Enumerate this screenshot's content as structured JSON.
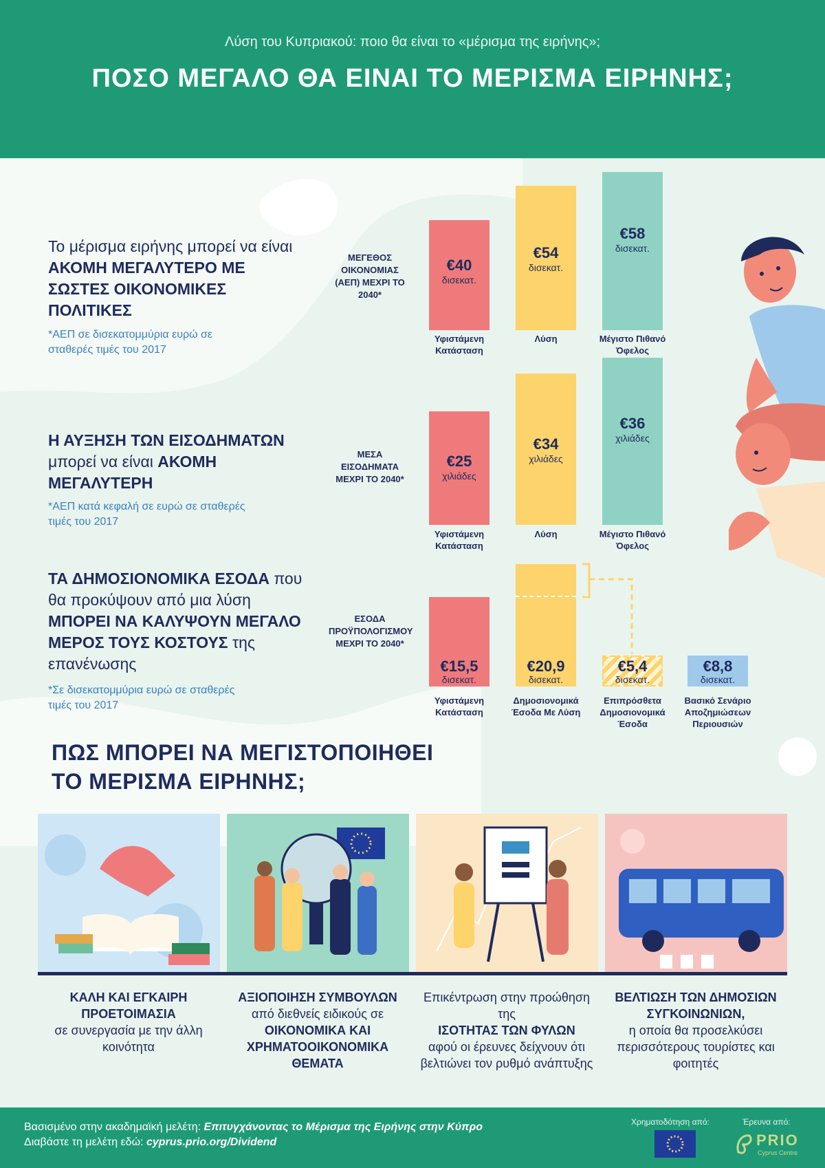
{
  "header": {
    "subtitle": "Λύση του Κυπριακού: ποιο θα είναι το «μέρισμα της ειρήνης»;",
    "title": "ΠΟΣΟ ΜΕΓΑΛΟ ΘΑ ΕΙΝΑΙ ΤΟ ΜΕΡΙΣΜΑ ΕΙΡΗΝΗΣ;"
  },
  "section1": {
    "text_pre": "Το μέρισμα ειρήνης μπορεί να είναι ",
    "text_bold": "ΑΚΟΜΗ ΜΕΓΑΛΥΤΕΡΟ ΜΕ ΣΩΣΤΕΣ ΟΙΚΟΝΟΜΙΚΕΣ ΠΟΛΙΤΙΚΕΣ",
    "note": "*ΑΕΠ σε δισεκατομμύρια ευρώ σε σταθερές τιμές του 2017",
    "row_label": "ΜΕΓΕΘΟΣ ΟΙΚΟΝΟΜΙΑΣ (ΑΕΠ) ΜΕΧΡΙ ΤΟ 2040*",
    "bars": [
      {
        "value": "€40",
        "unit": "δισεκατ.",
        "caption": "Υφιστάμενη Κατάσταση",
        "amount": 40,
        "color": "#ef7a7c"
      },
      {
        "value": "€54",
        "unit": "δισεκατ.",
        "caption": "Λύση",
        "amount": 54,
        "color": "#fdd36b"
      },
      {
        "value": "€58",
        "unit": "δισεκατ.",
        "caption": "Μέγιστο Πιθανό Όφελος",
        "amount": 58,
        "color": "#8fd2c4"
      }
    ]
  },
  "section2": {
    "text_bold1": "Η ΑΥΞΗΣΗ ΤΩΝ ΕΙΣΟΔΗΜΑΤΩΝ",
    "text_mid": " μπορεί να είναι ",
    "text_bold2": "ΑΚΟΜΗ ΜΕΓΑΛΥΤΕΡΗ",
    "note": "*ΑΕΠ κατά κεφαλή σε ευρώ σε σταθερές τιμές του 2017",
    "row_label": "ΜΕΣΑ ΕΙΣΟΔΗΜΑΤΑ ΜΕΧΡΙ ΤΟ 2040*",
    "bars": [
      {
        "value": "€25",
        "unit": "χιλιάδες",
        "caption": "Υφιστάμενη Κατάσταση",
        "amount": 25,
        "color": "#ef7a7c"
      },
      {
        "value": "€34",
        "unit": "χιλιάδες",
        "caption": "Λύση",
        "amount": 34,
        "color": "#fdd36b"
      },
      {
        "value": "€36",
        "unit": "χιλιάδες",
        "caption": "Μέγιστο Πιθανό Όφελος",
        "amount": 36,
        "color": "#8fd2c4"
      }
    ]
  },
  "section3": {
    "text_bold1": "ΤΑ ΔΗΜΟΣΙΟΝΟΜΙΚΑ ΕΣΟΔΑ",
    "text_mid": " που θα προκύψουν από μια λύση ",
    "text_bold2": "ΜΠΟΡΕΙ ΝΑ ΚΑΛΥΨΟΥΝ ΜΕΓΑΛΟ ΜΕΡΟΣ ΤΟΥΣ ΚΟΣΤΟΥΣ",
    "text_post": " της επανένωσης",
    "note": "*Σε δισεκατομμύρια ευρώ σε σταθερές τιμές του 2017",
    "row_label": "ΕΣΟΔΑ ΠΡΟΫΠΟΛΟΓΙΣΜΟΥ ΜΕΧΡΙ ΤΟ 2040*",
    "bars": [
      {
        "value": "€15,5",
        "unit": "δισεκατ.",
        "caption": "Υφιστάμενη Κατάσταση",
        "amount": 15.5,
        "color": "#ef7a7c"
      },
      {
        "value": "€20,9",
        "unit": "δισεκατ.",
        "caption": "Δημοσιονομικά Έσοδα Με Λύση",
        "amount": 20.9,
        "color": "#fdd36b"
      },
      {
        "value": "€5,4",
        "unit": "δισεκατ.",
        "caption": "Επιπρόσθετα Δημοσιονομικά Έσοδα",
        "amount": 5.4,
        "color": "#fdd36b"
      },
      {
        "value": "€8,8",
        "unit": "δισεκατ.",
        "caption": "Βασικό Σενάριο Αποζημιώσεων Περιουσιών",
        "amount": 8.8,
        "color": "#9fc9ea"
      }
    ]
  },
  "how": {
    "title_line1": "ΠΩΣ ΜΠΟΡΕΙ ΝΑ ΜΕΓΙΣΤΟΠΟΙΗΘΕΙ",
    "title_line2": "ΤΟ ΜΕΡΙΣΜΑ ΕΙΡΗΝΗΣ;",
    "items": [
      {
        "bold": "ΚΑΛΗ ΚΑΙ ΕΓΚΑΙΡΗ ΠΡΟΕΤΟΙΜΑΣΙΑ",
        "text": "σε συνεργασία με την άλλη κοινότητα"
      },
      {
        "bold": "ΑΞΙΟΠΟΙΗΣΗ ΣΥΜΒΟΥΛΩΝ",
        "text": "από διεθνείς ειδικούς σε",
        "bold2": "ΟΙΚΟΝΟΜΙΚΑ ΚΑΙ ΧΡΗΜΑΤΟΟΙΚΟΝΟΜΙΚΑ ΘΕΜΑΤΑ"
      },
      {
        "text": "Επικέντρωση στην προώθηση της",
        "bold": "ΙΣΟΤΗΤΑΣ ΤΩΝ ΦΥΛΩΝ",
        "text2": "αφού οι έρευνες δείχνουν ότι βελτιώνει τον ρυθμό ανάπτυξης"
      },
      {
        "bold": "ΒΕΛΤΙΩΣΗ ΤΩΝ ΔΗΜΟΣΙΩΝ ΣΥΓΚΟΙΝΩΝΙΩΝ,",
        "text": "η οποία θα προσελκύσει περισσότερους τουρίστες και φοιτητές"
      }
    ]
  },
  "footer": {
    "based_on": "Βασισμένο στην ακαδημαϊκή μελέτη:",
    "study_title": "Επιτυγχάνοντας το Μέρισμα της Ειρήνης στην Κύπρο",
    "read_here": "Διαβάστε τη μελέτη εδώ:",
    "link": "cyprus.prio.org/Dividend",
    "funded_by": "Χρηματοδότηση από:",
    "research_by": "Έρευνα από:",
    "prio": "PRIO",
    "prio_sub": "Cyprus Centre"
  },
  "colors": {
    "brand_green": "#1e9a76",
    "navy": "#1f2a5c",
    "red": "#ef7a7c",
    "yellow": "#fdd36b",
    "teal": "#8fd2c4",
    "blue": "#9fc9ea",
    "note_blue": "#3a7fbf"
  }
}
